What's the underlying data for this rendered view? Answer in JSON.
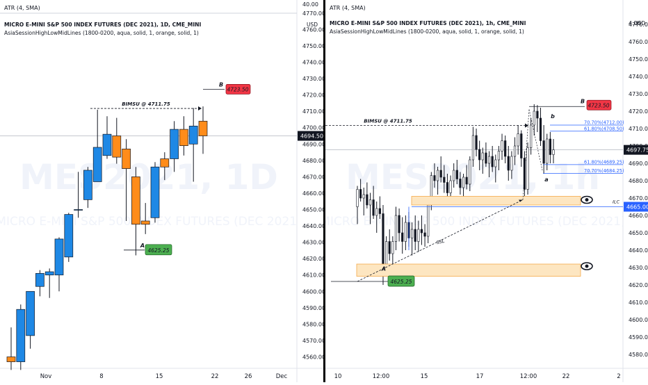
{
  "panels": [
    {
      "id": "left",
      "header": {
        "study": "ATR (4, SMA)",
        "study_value": "40.00",
        "title": "MICRO E-MINI S&P 500 INDEX FUTURES (DEC 2021), 1D, CME_MINI",
        "indicator": "AsiaSessionHighLowMidLines (1800-0200, aqua, solid, 1, orange, solid, 1)",
        "currency": "USD"
      },
      "watermark": {
        "symbol": "MES2021, 1D",
        "name": "MICRO E-MINI S&P 500 INDEX FUTURES (DEC 2021)"
      },
      "last_price": "4694.50",
      "x_labels": [
        "Nov",
        "8",
        "15",
        "22",
        "26",
        "Dec"
      ],
      "annotations": {
        "bimsu": "BIMSU @ 4711.75",
        "B": "B",
        "A": "A",
        "b_price": "4723.50",
        "a_price": "4625.25"
      }
    },
    {
      "id": "right",
      "header": {
        "study": "ATR (4, SMA)",
        "study_value": "4.00",
        "title": "MICRO E-MINI S&P 500 INDEX FUTURES (DEC 2021), 1h, CME_MINI",
        "indicator": "AsiaSessionHighLowMidLines (1800-0200, aqua, solid, 1, orange, solid, 1)",
        "currency": "USD"
      },
      "watermark": {
        "symbol": "MES2021, 1h",
        "name": "MICRO E-MINI S&P 500 INDEX FUTURES (DEC 2021)"
      },
      "last_price": "4697.75",
      "line_price": "4665.00",
      "x_labels": [
        "10",
        "12:00",
        "15",
        "17",
        "12:00",
        "22",
        "2"
      ],
      "annotations": {
        "bimsu": "BIMSU @ 4711.75",
        "B": "B",
        "A": "A",
        "b_lower": "b",
        "a_lower": "a",
        "ssl": "SSL",
        "ilc": "ILC",
        "b_price": "4723.50",
        "a_price": "4625.25",
        "fib_upper": [
          "70.70%(4712.00)",
          "61.80%(4708.50)"
        ],
        "fib_lower": [
          "61.80%(4689.25)",
          "70.70%(4684.25)"
        ]
      }
    }
  ],
  "chart_data": [
    {
      "type": "candlestick",
      "title": "MICRO E-MINI S&P 500 INDEX FUTURES (DEC 2021), 1D, CME_MINI",
      "y_ticks": [
        4560,
        4570,
        4580,
        4590,
        4600,
        4610,
        4620,
        4630,
        4640,
        4650,
        4660,
        4670,
        4680,
        4690,
        4700,
        4710,
        4720,
        4730,
        4740,
        4750,
        4760,
        4770
      ],
      "ylim": [
        4553,
        4778
      ],
      "candles": [
        {
          "o": 4560,
          "h": 4578,
          "l": 4552,
          "c": 4557
        },
        {
          "o": 4557,
          "h": 4592,
          "l": 4552,
          "c": 4589
        },
        {
          "o": 4573,
          "h": 4600,
          "l": 4565,
          "c": 4600
        },
        {
          "o": 4603,
          "h": 4613,
          "l": 4597,
          "c": 4611
        },
        {
          "o": 4610,
          "h": 4614,
          "l": 4596,
          "c": 4612
        },
        {
          "o": 4610,
          "h": 4633,
          "l": 4600,
          "c": 4632
        },
        {
          "o": 4621,
          "h": 4648,
          "l": 4618,
          "c": 4647
        },
        {
          "o": 4650,
          "h": 4673,
          "l": 4645,
          "c": 4650
        },
        {
          "o": 4656,
          "h": 4676,
          "l": 4651,
          "c": 4674
        },
        {
          "o": 4667,
          "h": 4711,
          "l": 4667,
          "c": 4688
        },
        {
          "o": 4683,
          "h": 4707,
          "l": 4681,
          "c": 4696
        },
        {
          "o": 4695,
          "h": 4706,
          "l": 4678,
          "c": 4682
        },
        {
          "o": 4687,
          "h": 4693,
          "l": 4643,
          "c": 4675
        },
        {
          "o": 4670,
          "h": 4676,
          "l": 4622,
          "c": 4641
        },
        {
          "o": 4643,
          "h": 4654,
          "l": 4635,
          "c": 4641
        },
        {
          "o": 4645,
          "h": 4679,
          "l": 4642,
          "c": 4676
        },
        {
          "o": 4681,
          "h": 4685,
          "l": 4668,
          "c": 4676
        },
        {
          "o": 4681,
          "h": 4704,
          "l": 4673,
          "c": 4699
        },
        {
          "o": 4699,
          "h": 4707,
          "l": 4683,
          "c": 4689
        },
        {
          "o": 4690,
          "h": 4712,
          "l": 4667,
          "c": 4701
        },
        {
          "o": 4704,
          "h": 4713,
          "l": 4684,
          "c": 4695
        }
      ],
      "levels": {
        "bimsu": 4711.75,
        "B": 4723.5,
        "A": 4625.25
      }
    },
    {
      "type": "candlestick",
      "title": "MICRO E-MINI S&P 500 INDEX FUTURES (DEC 2021), 1h, CME_MINI",
      "y_ticks": [
        4580,
        4590,
        4600,
        4610,
        4620,
        4630,
        4640,
        4650,
        4660,
        4670,
        4680,
        4690,
        4700,
        4710,
        4720,
        4730,
        4740,
        4750,
        4760,
        4770
      ],
      "ylim": [
        4572,
        4784
      ],
      "candles": [
        {
          "o": 4665,
          "h": 4677,
          "l": 4655,
          "c": 4675
        },
        {
          "o": 4675,
          "h": 4681,
          "l": 4668,
          "c": 4670
        },
        {
          "o": 4670,
          "h": 4676,
          "l": 4660,
          "c": 4672
        },
        {
          "o": 4672,
          "h": 4679,
          "l": 4664,
          "c": 4666
        },
        {
          "o": 4666,
          "h": 4673,
          "l": 4655,
          "c": 4669
        },
        {
          "o": 4669,
          "h": 4677,
          "l": 4658,
          "c": 4660
        },
        {
          "o": 4660,
          "h": 4668,
          "l": 4650,
          "c": 4664
        },
        {
          "o": 4664,
          "h": 4671,
          "l": 4658,
          "c": 4661
        },
        {
          "o": 4661,
          "h": 4666,
          "l": 4620,
          "c": 4632
        },
        {
          "o": 4632,
          "h": 4648,
          "l": 4626,
          "c": 4645
        },
        {
          "o": 4645,
          "h": 4652,
          "l": 4634,
          "c": 4638
        },
        {
          "o": 4638,
          "h": 4648,
          "l": 4628,
          "c": 4645
        },
        {
          "o": 4645,
          "h": 4665,
          "l": 4640,
          "c": 4660
        },
        {
          "o": 4660,
          "h": 4664,
          "l": 4645,
          "c": 4650
        },
        {
          "o": 4650,
          "h": 4659,
          "l": 4638,
          "c": 4645
        },
        {
          "o": 4645,
          "h": 4660,
          "l": 4640,
          "c": 4656
        },
        {
          "o": 4656,
          "h": 4662,
          "l": 4642,
          "c": 4647
        },
        {
          "o": 4647,
          "h": 4656,
          "l": 4637,
          "c": 4652
        },
        {
          "o": 4652,
          "h": 4660,
          "l": 4640,
          "c": 4645
        },
        {
          "o": 4645,
          "h": 4657,
          "l": 4639,
          "c": 4652
        },
        {
          "o": 4652,
          "h": 4660,
          "l": 4643,
          "c": 4650
        },
        {
          "o": 4650,
          "h": 4655,
          "l": 4642,
          "c": 4648
        },
        {
          "o": 4648,
          "h": 4668,
          "l": 4644,
          "c": 4666
        },
        {
          "o": 4666,
          "h": 4685,
          "l": 4663,
          "c": 4683
        },
        {
          "o": 4683,
          "h": 4690,
          "l": 4676,
          "c": 4680
        },
        {
          "o": 4680,
          "h": 4688,
          "l": 4672,
          "c": 4686
        },
        {
          "o": 4686,
          "h": 4694,
          "l": 4679,
          "c": 4682
        },
        {
          "o": 4682,
          "h": 4689,
          "l": 4673,
          "c": 4679
        },
        {
          "o": 4679,
          "h": 4684,
          "l": 4668,
          "c": 4673
        },
        {
          "o": 4673,
          "h": 4683,
          "l": 4667,
          "c": 4680
        },
        {
          "o": 4680,
          "h": 4690,
          "l": 4676,
          "c": 4686
        },
        {
          "o": 4686,
          "h": 4692,
          "l": 4678,
          "c": 4681
        },
        {
          "o": 4681,
          "h": 4685,
          "l": 4672,
          "c": 4676
        },
        {
          "o": 4676,
          "h": 4684,
          "l": 4670,
          "c": 4682
        },
        {
          "o": 4682,
          "h": 4689,
          "l": 4675,
          "c": 4678
        },
        {
          "o": 4678,
          "h": 4694,
          "l": 4674,
          "c": 4692
        },
        {
          "o": 4692,
          "h": 4711,
          "l": 4688,
          "c": 4706
        },
        {
          "o": 4706,
          "h": 4710,
          "l": 4694,
          "c": 4698
        },
        {
          "o": 4698,
          "h": 4703,
          "l": 4686,
          "c": 4692
        },
        {
          "o": 4692,
          "h": 4699,
          "l": 4684,
          "c": 4696
        },
        {
          "o": 4696,
          "h": 4702,
          "l": 4688,
          "c": 4690
        },
        {
          "o": 4690,
          "h": 4697,
          "l": 4682,
          "c": 4694
        },
        {
          "o": 4694,
          "h": 4700,
          "l": 4685,
          "c": 4688
        },
        {
          "o": 4688,
          "h": 4695,
          "l": 4679,
          "c": 4692
        },
        {
          "o": 4692,
          "h": 4700,
          "l": 4686,
          "c": 4697
        },
        {
          "o": 4697,
          "h": 4707,
          "l": 4692,
          "c": 4703
        },
        {
          "o": 4703,
          "h": 4706,
          "l": 4690,
          "c": 4694
        },
        {
          "o": 4694,
          "h": 4700,
          "l": 4680,
          "c": 4686
        },
        {
          "o": 4686,
          "h": 4697,
          "l": 4681,
          "c": 4694
        },
        {
          "o": 4694,
          "h": 4705,
          "l": 4689,
          "c": 4700
        },
        {
          "o": 4700,
          "h": 4712,
          "l": 4695,
          "c": 4707
        },
        {
          "o": 4707,
          "h": 4709,
          "l": 4688,
          "c": 4693
        },
        {
          "o": 4693,
          "h": 4697,
          "l": 4670,
          "c": 4675
        },
        {
          "o": 4675,
          "h": 4702,
          "l": 4672,
          "c": 4699
        },
        {
          "o": 4699,
          "h": 4716,
          "l": 4695,
          "c": 4712
        },
        {
          "o": 4712,
          "h": 4724,
          "l": 4706,
          "c": 4720
        },
        {
          "o": 4720,
          "h": 4723.5,
          "l": 4708,
          "c": 4716
        },
        {
          "o": 4716,
          "h": 4722,
          "l": 4700,
          "c": 4703
        },
        {
          "o": 4703,
          "h": 4712,
          "l": 4684,
          "c": 4690
        },
        {
          "o": 4690,
          "h": 4707,
          "l": 4686,
          "c": 4704
        },
        {
          "o": 4704,
          "h": 4708,
          "l": 4690,
          "c": 4695
        },
        {
          "o": 4695,
          "h": 4704,
          "l": 4690,
          "c": 4697.75
        }
      ],
      "levels": {
        "bimsu": 4711.75,
        "B": 4723.5,
        "A": 4625.25,
        "line": 4665.0
      }
    }
  ]
}
